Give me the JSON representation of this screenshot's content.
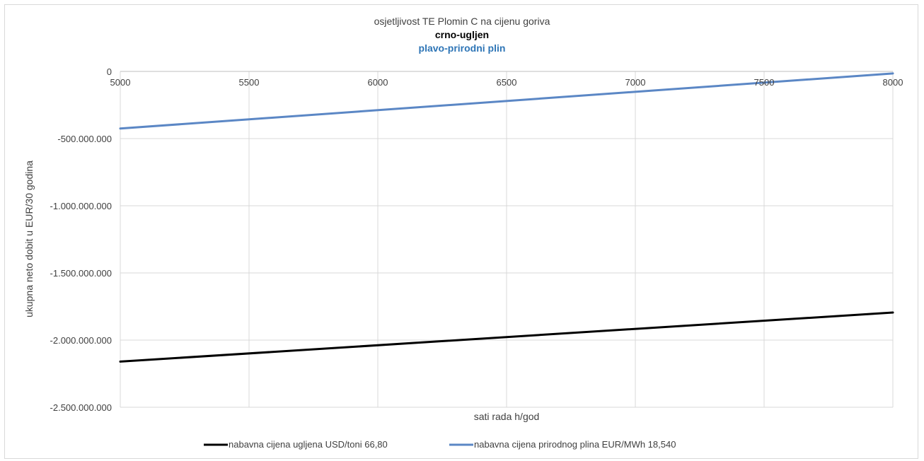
{
  "chart_data": {
    "type": "line",
    "title": "osjetljivost TE Plomin C na cijenu goriva",
    "subtitle_lines": [
      {
        "text": "crno-ugljen",
        "color": "#000000"
      },
      {
        "text": "plavo-prirodni plin",
        "color": "#2e75b6"
      }
    ],
    "xlabel": "sati rada h/god",
    "ylabel": "ukupna neto dobit u EUR/30 godina",
    "xlim": [
      5000,
      8000
    ],
    "ylim": [
      -2500000000,
      0
    ],
    "x_ticks": [
      5000,
      5500,
      6000,
      6500,
      7000,
      7500,
      8000
    ],
    "x_tick_labels": [
      "5000",
      "5500",
      "6000",
      "6500",
      "7000",
      "7500",
      "8000"
    ],
    "y_ticks": [
      0,
      -500000000,
      -1000000000,
      -1500000000,
      -2000000000,
      -2500000000
    ],
    "y_tick_labels": [
      "0",
      "-500.000.000",
      "-1.000.000.000",
      "-1.500.000.000",
      "-2.000.000.000",
      "-2.500.000.000"
    ],
    "grid": true,
    "x_axis_position": "top",
    "legend_position": "bottom",
    "series": [
      {
        "name": "nabavna cijena ugljena USD/toni 66,80",
        "color": "#000000",
        "x": [
          5000,
          8000
        ],
        "y": [
          -2160000000,
          -1795000000
        ]
      },
      {
        "name": "nabavna cijena prirodnog plina EUR/MWh  18,540",
        "color": "#5b87c5",
        "x": [
          5000,
          8000
        ],
        "y": [
          -425000000,
          -15000000
        ]
      }
    ]
  }
}
